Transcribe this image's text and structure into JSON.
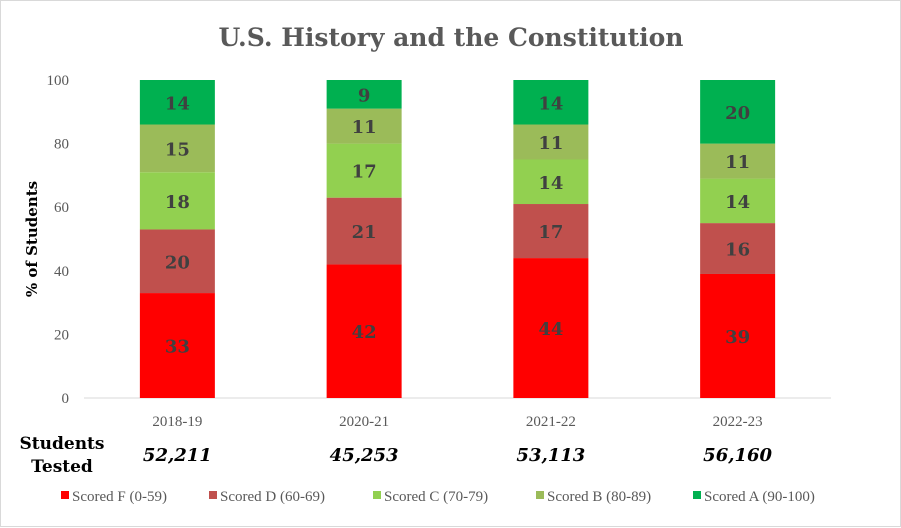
{
  "chart_data": {
    "type": "bar",
    "stacked": true,
    "title": "U.S. History and the Constitution",
    "xlabel": "",
    "ylabel": "% of Students",
    "ylim": [
      0,
      100
    ],
    "yticks": [
      0,
      20,
      40,
      60,
      80,
      100
    ],
    "grid": false,
    "legend_position": "bottom",
    "categories": [
      "2018-19",
      "2020-21",
      "2021-22",
      "2022-23"
    ],
    "series": [
      {
        "name": "Scored F (0-59)",
        "color": "#FF0000",
        "values": [
          33,
          42,
          44,
          39
        ]
      },
      {
        "name": "Scored D (60-69)",
        "color": "#C0504D",
        "values": [
          20,
          21,
          17,
          16
        ]
      },
      {
        "name": "Scored C (70-79)",
        "color": "#92D050",
        "values": [
          18,
          17,
          14,
          14
        ]
      },
      {
        "name": "Scored B (80-89)",
        "color": "#9BBB59",
        "values": [
          15,
          11,
          11,
          11
        ]
      },
      {
        "name": "Scored A (90-100)",
        "color": "#00B050",
        "values": [
          14,
          9,
          14,
          20
        ]
      }
    ],
    "students_tested": {
      "label_line1": "Students",
      "label_line2": "Tested",
      "values": [
        "52,211",
        "45,253",
        "53,113",
        "56,160"
      ]
    }
  }
}
